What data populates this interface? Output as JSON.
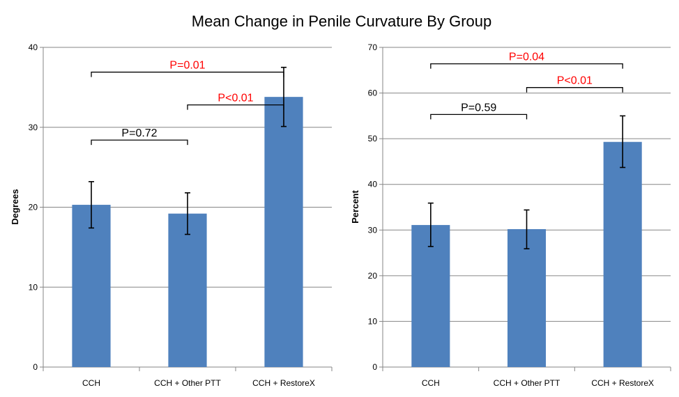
{
  "figure": {
    "title": "Mean Change in Penile Curvature By Group"
  },
  "colors": {
    "bar": "#4f81bd",
    "grid": "#868686",
    "axis": "#868686",
    "significant": "#ff0000",
    "nonsignificant": "#000000",
    "errorbar": "#000000"
  },
  "chart_data": [
    {
      "type": "bar",
      "title": "",
      "xlabel": "",
      "ylabel": "Degrees",
      "ylim": [
        0,
        40
      ],
      "yticks": [
        0,
        10,
        20,
        30,
        40
      ],
      "grid": true,
      "categories": [
        "CCH",
        "CCH + Other PTT",
        "CCH + RestoreX"
      ],
      "values": [
        20.3,
        19.2,
        33.8
      ],
      "error_low": [
        17.4,
        16.6,
        30.1
      ],
      "error_high": [
        23.2,
        21.8,
        37.5
      ],
      "comparisons": [
        {
          "from": 0,
          "to": 2,
          "label": "P=0.01",
          "significant": true,
          "level": 36.9
        },
        {
          "from": 1,
          "to": 2,
          "label": "P<0.01",
          "significant": true,
          "level": 32.8
        },
        {
          "from": 0,
          "to": 1,
          "label": "P=0.72",
          "significant": false,
          "level": 28.4
        }
      ]
    },
    {
      "type": "bar",
      "title": "",
      "xlabel": "",
      "ylabel": "Percent",
      "ylim": [
        0,
        70
      ],
      "yticks": [
        0,
        10,
        20,
        30,
        40,
        50,
        60,
        70
      ],
      "grid": true,
      "categories": [
        "CCH",
        "CCH + Other PTT",
        "CCH + RestoreX"
      ],
      "values": [
        31.1,
        30.2,
        49.3
      ],
      "error_low": [
        26.4,
        25.9,
        43.7
      ],
      "error_high": [
        35.9,
        34.4,
        55.0
      ],
      "comparisons": [
        {
          "from": 0,
          "to": 2,
          "label": "P=0.04",
          "significant": true,
          "level": 66.4
        },
        {
          "from": 1,
          "to": 2,
          "label": "P<0.01",
          "significant": true,
          "level": 61.2
        },
        {
          "from": 0,
          "to": 1,
          "label": "P=0.59",
          "significant": false,
          "level": 55.3
        }
      ]
    }
  ]
}
